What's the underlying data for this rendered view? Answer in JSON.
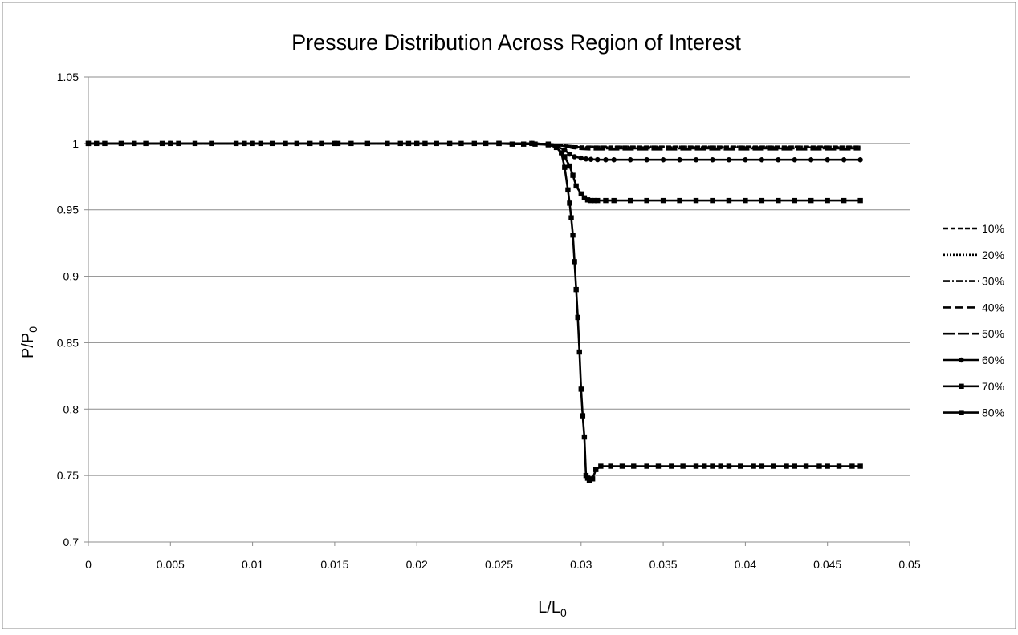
{
  "chart_data": {
    "type": "line",
    "title": "Pressure Distribution Across Region of Interest",
    "xlabel": {
      "base": "L/L",
      "sub": "0"
    },
    "ylabel": {
      "base": "P/P",
      "sub": "0"
    },
    "xlim": [
      0,
      0.05
    ],
    "ylim": [
      0.7,
      1.05
    ],
    "xticks": [
      0,
      0.005,
      0.01,
      0.015,
      0.02,
      0.025,
      0.03,
      0.035,
      0.04,
      0.045,
      0.05
    ],
    "yticks": [
      0.7,
      0.75,
      0.8,
      0.85,
      0.9,
      0.95,
      1,
      1.05
    ],
    "grid": "horizontal",
    "legend": "right",
    "series": [
      {
        "name": "10%",
        "dash": "6,3",
        "marker": "none",
        "x": [
          0,
          0.0005,
          0.001,
          0.002,
          0.005,
          0.01,
          0.015,
          0.02,
          0.025,
          0.027,
          0.028,
          0.0285,
          0.029,
          0.0295,
          0.03,
          0.0305,
          0.031,
          0.032,
          0.035,
          0.04,
          0.045,
          0.047
        ],
        "y": [
          1,
          1,
          1,
          1,
          1,
          1,
          1,
          1,
          1,
          1,
          0.9995,
          0.999,
          0.9985,
          0.998,
          0.9978,
          0.9977,
          0.9977,
          0.9977,
          0.9977,
          0.9977,
          0.9977,
          0.9977
        ]
      },
      {
        "name": "20%",
        "dash": "2,2",
        "marker": "none",
        "x": [
          0,
          0.005,
          0.01,
          0.015,
          0.02,
          0.025,
          0.027,
          0.028,
          0.0285,
          0.029,
          0.0295,
          0.03,
          0.0305,
          0.031,
          0.035,
          0.04,
          0.045,
          0.047
        ],
        "y": [
          1,
          1,
          1,
          1,
          1,
          1,
          1,
          0.9995,
          0.999,
          0.9985,
          0.998,
          0.9977,
          0.9976,
          0.9976,
          0.9976,
          0.9976,
          0.9976,
          0.9976
        ]
      },
      {
        "name": "30%",
        "dash": "8,3,2,3",
        "marker": "none",
        "x": [
          0,
          0.005,
          0.01,
          0.015,
          0.02,
          0.025,
          0.027,
          0.028,
          0.0285,
          0.029,
          0.0295,
          0.03,
          0.0305,
          0.031,
          0.035,
          0.04,
          0.045,
          0.047
        ],
        "y": [
          1,
          1,
          1,
          1,
          1,
          1,
          1,
          0.9995,
          0.999,
          0.998,
          0.9975,
          0.9972,
          0.9971,
          0.9971,
          0.9971,
          0.9971,
          0.9971,
          0.9971
        ]
      },
      {
        "name": "40%",
        "dash": "10,5",
        "marker": "none",
        "x": [
          0,
          0.005,
          0.01,
          0.015,
          0.02,
          0.025,
          0.027,
          0.028,
          0.0285,
          0.029,
          0.0295,
          0.03,
          0.0305,
          0.031,
          0.035,
          0.04,
          0.045,
          0.047
        ],
        "y": [
          1,
          1,
          1,
          1,
          1,
          1,
          1,
          0.9995,
          0.999,
          0.998,
          0.997,
          0.9965,
          0.9963,
          0.9963,
          0.9963,
          0.9963,
          0.9963,
          0.9963
        ]
      },
      {
        "name": "50%",
        "dash": "14,4",
        "marker": "none",
        "x": [
          0,
          0.005,
          0.01,
          0.015,
          0.02,
          0.025,
          0.027,
          0.028,
          0.0285,
          0.029,
          0.0295,
          0.03,
          0.0305,
          0.031,
          0.035,
          0.04,
          0.045,
          0.047
        ],
        "y": [
          1,
          1,
          1,
          1,
          1,
          1,
          1,
          0.9995,
          0.999,
          0.998,
          0.9965,
          0.9958,
          0.9955,
          0.9955,
          0.9955,
          0.9955,
          0.9955,
          0.9955
        ]
      },
      {
        "name": "60%",
        "dash": "",
        "marker": "circle",
        "x": [
          0,
          0.005,
          0.01,
          0.015,
          0.02,
          0.025,
          0.027,
          0.028,
          0.0285,
          0.029,
          0.0293,
          0.0296,
          0.03,
          0.0303,
          0.0306,
          0.031,
          0.0315,
          0.032,
          0.033,
          0.034,
          0.035,
          0.036,
          0.037,
          0.038,
          0.039,
          0.04,
          0.041,
          0.042,
          0.043,
          0.044,
          0.045,
          0.046,
          0.047
        ],
        "y": [
          1,
          1,
          1,
          1,
          1,
          1,
          1,
          0.9995,
          0.998,
          0.995,
          0.992,
          0.99,
          0.989,
          0.9883,
          0.988,
          0.9878,
          0.9877,
          0.9877,
          0.9877,
          0.9877,
          0.9877,
          0.9877,
          0.9877,
          0.9877,
          0.9877,
          0.9877,
          0.9877,
          0.9877,
          0.9877,
          0.9877,
          0.9877,
          0.9877,
          0.9877
        ]
      },
      {
        "name": "70%",
        "dash": "",
        "marker": "square",
        "x": [
          0,
          0.005,
          0.01,
          0.015,
          0.02,
          0.025,
          0.027,
          0.028,
          0.0285,
          0.029,
          0.0293,
          0.0295,
          0.0297,
          0.03,
          0.0302,
          0.0304,
          0.0306,
          0.0308,
          0.031,
          0.0315,
          0.032,
          0.033,
          0.034,
          0.035,
          0.036,
          0.037,
          0.038,
          0.039,
          0.04,
          0.041,
          0.042,
          0.043,
          0.044,
          0.045,
          0.046,
          0.047
        ],
        "y": [
          1,
          1,
          1,
          1,
          1,
          1,
          1,
          0.9995,
          0.997,
          0.99,
          0.983,
          0.976,
          0.968,
          0.962,
          0.959,
          0.9575,
          0.957,
          0.957,
          0.957,
          0.957,
          0.957,
          0.957,
          0.957,
          0.957,
          0.957,
          0.957,
          0.957,
          0.957,
          0.957,
          0.957,
          0.957,
          0.957,
          0.957,
          0.957,
          0.957,
          0.957
        ]
      },
      {
        "name": "80%",
        "dash": "",
        "marker": "square",
        "x": [
          0,
          0.0005,
          0.001,
          0.002,
          0.0028,
          0.0035,
          0.0045,
          0.0055,
          0.0065,
          0.0075,
          0.009,
          0.0095,
          0.0105,
          0.0112,
          0.012,
          0.0127,
          0.0135,
          0.0142,
          0.0152,
          0.016,
          0.017,
          0.0182,
          0.019,
          0.0195,
          0.0205,
          0.0212,
          0.022,
          0.0227,
          0.0235,
          0.0242,
          0.025,
          0.0258,
          0.0265,
          0.0272,
          0.028,
          0.0285,
          0.0288,
          0.029,
          0.0292,
          0.0293,
          0.0294,
          0.0295,
          0.0296,
          0.0297,
          0.0298,
          0.0299,
          0.03,
          0.0301,
          0.0302,
          0.0303,
          0.0304,
          0.0305,
          0.0307,
          0.0309,
          0.0312,
          0.0318,
          0.0325,
          0.0332,
          0.034,
          0.0347,
          0.0355,
          0.0362,
          0.037,
          0.0375,
          0.038,
          0.0385,
          0.039,
          0.0397,
          0.0405,
          0.041,
          0.0417,
          0.0425,
          0.043,
          0.0437,
          0.0445,
          0.045,
          0.0457,
          0.0465,
          0.047
        ],
        "y": [
          1,
          1,
          1,
          1,
          1,
          1,
          1,
          1,
          1,
          1,
          1,
          1,
          1,
          1,
          1,
          1,
          1,
          1,
          1,
          1,
          1,
          1,
          1,
          1,
          1,
          1,
          1,
          1,
          1,
          1,
          1,
          0.9995,
          0.9995,
          0.9995,
          0.999,
          0.997,
          0.993,
          0.982,
          0.965,
          0.955,
          0.944,
          0.931,
          0.911,
          0.89,
          0.869,
          0.843,
          0.815,
          0.795,
          0.779,
          0.75,
          0.748,
          0.7465,
          0.7475,
          0.7545,
          0.757,
          0.757,
          0.757,
          0.757,
          0.757,
          0.757,
          0.757,
          0.757,
          0.757,
          0.757,
          0.757,
          0.757,
          0.757,
          0.757,
          0.757,
          0.757,
          0.757,
          0.757,
          0.757,
          0.757,
          0.757,
          0.757,
          0.757,
          0.757,
          0.757
        ]
      }
    ]
  }
}
